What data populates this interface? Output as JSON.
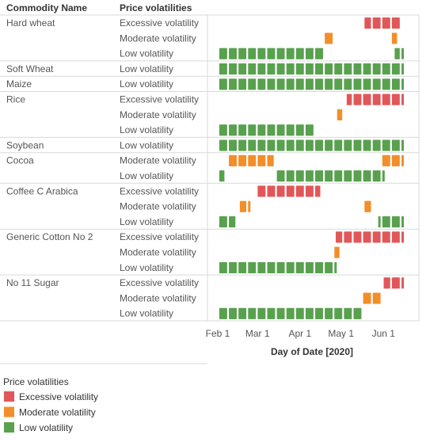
{
  "chart_data": {
    "type": "heatmap",
    "headers": {
      "commodity": "Commodity Name",
      "level": "Price volatilities"
    },
    "x_axis": {
      "title": "Day of Date [2020]",
      "ticks": [
        "Feb 1",
        "Mar 1",
        "Apr 1",
        "May 1",
        "Jun 1"
      ],
      "tick_dates": [
        "2020-02-01",
        "2020-03-01",
        "2020-04-01",
        "2020-05-01",
        "2020-06-01"
      ],
      "range": [
        "2020-01-30",
        "2020-06-16"
      ]
    },
    "colors": {
      "Excessive volatility": "#e15759",
      "Moderate volatility": "#f28e2b",
      "Low volatility": "#59a14f"
    },
    "legend": {
      "title": "Price volatilities",
      "items": [
        "Excessive volatility",
        "Moderate volatility",
        "Low volatility"
      ]
    },
    "series": [
      {
        "name": "Hard wheat",
        "rows": [
          {
            "level": "Excessive volatility",
            "periods": [
              [
                "2020-05-19",
                "2020-06-12"
              ]
            ]
          },
          {
            "level": "Moderate volatility",
            "periods": [
              [
                "2020-04-20",
                "2020-04-24"
              ],
              [
                "2020-06-08",
                "2020-06-10"
              ]
            ]
          },
          {
            "level": "Low volatility",
            "periods": [
              [
                "2020-02-01",
                "2020-04-17"
              ],
              [
                "2020-06-10",
                "2020-06-15"
              ]
            ]
          }
        ]
      },
      {
        "name": "Soft Wheat",
        "rows": [
          {
            "level": "Low volatility",
            "periods": [
              [
                "2020-02-01",
                "2020-06-15"
              ]
            ]
          }
        ]
      },
      {
        "name": "Maize",
        "rows": [
          {
            "level": "Low volatility",
            "periods": [
              [
                "2020-02-01",
                "2020-06-15"
              ]
            ]
          }
        ]
      },
      {
        "name": "Rice",
        "rows": [
          {
            "level": "Excessive volatility",
            "periods": [
              [
                "2020-05-06",
                "2020-06-15"
              ]
            ]
          },
          {
            "level": "Moderate volatility",
            "periods": [
              [
                "2020-04-29",
                "2020-05-01"
              ]
            ]
          },
          {
            "level": "Low volatility",
            "periods": [
              [
                "2020-02-01",
                "2020-04-10"
              ]
            ]
          }
        ]
      },
      {
        "name": "Soybean",
        "rows": [
          {
            "level": "Low volatility",
            "periods": [
              [
                "2020-02-01",
                "2020-06-15"
              ]
            ]
          }
        ]
      },
      {
        "name": "Cocoa",
        "rows": [
          {
            "level": "Moderate volatility",
            "periods": [
              [
                "2020-02-08",
                "2020-03-12"
              ],
              [
                "2020-06-01",
                "2020-06-15"
              ]
            ]
          },
          {
            "level": "Low volatility",
            "periods": [
              [
                "2020-02-01",
                "2020-02-05"
              ],
              [
                "2020-03-16",
                "2020-06-01"
              ]
            ]
          }
        ]
      },
      {
        "name": "Coffee C Arabica",
        "rows": [
          {
            "level": "Excessive volatility",
            "periods": [
              [
                "2020-03-02",
                "2020-04-15"
              ]
            ]
          },
          {
            "level": "Moderate volatility",
            "periods": [
              [
                "2020-02-18",
                "2020-02-24"
              ],
              [
                "2020-05-19",
                "2020-05-24"
              ]
            ]
          },
          {
            "level": "Low volatility",
            "periods": [
              [
                "2020-02-01",
                "2020-02-13"
              ],
              [
                "2020-05-29",
                "2020-06-15"
              ]
            ]
          }
        ]
      },
      {
        "name": "Generic Cotton No 2",
        "rows": [
          {
            "level": "Excessive volatility",
            "periods": [
              [
                "2020-04-28",
                "2020-06-15"
              ]
            ]
          },
          {
            "level": "Moderate volatility",
            "periods": [
              [
                "2020-04-27",
                "2020-04-29"
              ]
            ]
          },
          {
            "level": "Low volatility",
            "periods": [
              [
                "2020-02-01",
                "2020-04-27"
              ]
            ]
          }
        ]
      },
      {
        "name": "No 11 Sugar",
        "rows": [
          {
            "level": "Excessive volatility",
            "periods": [
              [
                "2020-06-02",
                "2020-06-15"
              ]
            ]
          },
          {
            "level": "Moderate volatility",
            "periods": [
              [
                "2020-05-18",
                "2020-05-29"
              ]
            ]
          },
          {
            "level": "Low volatility",
            "periods": [
              [
                "2020-02-01",
                "2020-05-15"
              ]
            ]
          }
        ]
      }
    ]
  }
}
